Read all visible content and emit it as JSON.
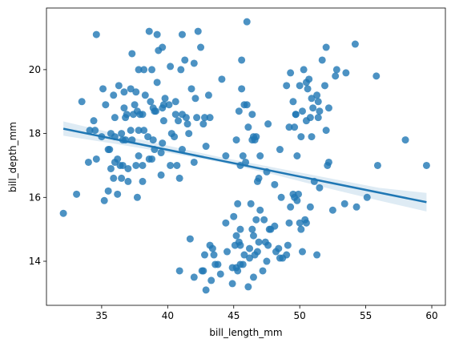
{
  "chart_data": {
    "type": "scatter",
    "xlabel": "bill_length_mm",
    "ylabel": "bill_depth_mm",
    "xlim": [
      30.82,
      61.03
    ],
    "ylim": [
      12.62,
      21.93
    ],
    "xticks": [
      35,
      40,
      45,
      50,
      55,
      60
    ],
    "yticks": [
      14,
      16,
      18,
      20
    ],
    "color": "#1f77b4",
    "x": [
      32.1,
      33.1,
      33.5,
      34.0,
      34.1,
      34.4,
      34.5,
      34.6,
      34.6,
      35.0,
      35.1,
      35.2,
      35.3,
      35.5,
      35.5,
      35.6,
      35.7,
      35.9,
      35.9,
      36.0,
      36.0,
      36.0,
      36.2,
      36.2,
      36.3,
      36.4,
      36.5,
      36.5,
      36.6,
      36.7,
      36.7,
      36.8,
      36.9,
      37.0,
      37.0,
      37.2,
      37.2,
      37.3,
      37.3,
      37.5,
      37.6,
      37.6,
      37.7,
      37.7,
      37.8,
      37.8,
      37.8,
      37.9,
      38.1,
      38.1,
      38.1,
      38.2,
      38.2,
      38.3,
      38.5,
      38.6,
      38.6,
      38.7,
      38.8,
      38.8,
      38.9,
      39.0,
      39.1,
      39.2,
      39.2,
      39.3,
      39.5,
      39.5,
      39.6,
      39.6,
      39.7,
      39.7,
      39.8,
      40.1,
      40.2,
      40.2,
      40.3,
      40.5,
      40.6,
      40.7,
      40.8,
      40.9,
      41.0,
      41.1,
      41.1,
      41.3,
      41.4,
      41.5,
      41.6,
      41.8,
      42.0,
      42.1,
      42.2,
      42.3,
      42.5,
      42.7,
      42.8,
      42.9,
      43.1,
      43.2,
      44.1,
      44.4,
      45.6,
      45.8,
      46.0,
      40.6,
      41.1,
      36.6,
      39.0,
      37.4,
      38.9,
      35.7,
      36.8,
      39.6,
      42.0,
      40.9,
      41.7,
      42.0,
      42.6,
      42.7,
      42.8,
      42.9,
      43.2,
      43.3,
      43.4,
      43.5,
      43.6,
      43.8,
      44.0,
      44.4,
      44.5,
      44.9,
      45.1,
      45.2,
      45.2,
      45.3,
      45.4,
      45.5,
      45.5,
      45.7,
      45.8,
      46.1,
      46.2,
      46.4,
      46.5,
      46.6,
      46.8,
      46.9,
      47.2,
      47.3,
      47.5,
      47.6,
      47.8,
      48.1,
      48.2,
      48.4,
      48.5,
      48.7,
      49.0,
      49.1,
      49.2,
      49.5,
      49.8,
      50.0,
      50.1,
      50.4,
      50.5,
      50.8,
      51.1,
      51.3,
      51.5,
      52.1,
      52.2,
      52.5,
      53.4,
      54.3,
      55.1,
      55.9,
      59.6,
      45.0,
      45.3,
      46.5,
      46.2,
      47.4,
      48.6,
      49.3,
      49.6,
      46.7,
      47.0,
      44.9,
      45.5,
      46.3,
      47.7,
      50.2,
      49.9,
      45.2,
      45.4,
      45.5,
      45.6,
      45.7,
      46.0,
      46.1,
      46.4,
      46.4,
      46.6,
      46.7,
      46.8,
      46.9,
      47.0,
      47.5,
      47.6,
      48.1,
      48.5,
      49.0,
      49.2,
      49.3,
      49.5,
      49.6,
      49.7,
      49.8,
      50.0,
      50.1,
      50.2,
      50.3,
      50.5,
      50.6,
      50.7,
      50.8,
      50.9,
      51.0,
      51.3,
      51.4,
      51.5,
      51.7,
      51.9,
      52.0,
      52.0,
      52.2,
      52.7,
      52.8,
      53.5,
      54.2,
      55.8,
      58.0,
      49.7,
      50.9,
      51.4,
      50.5,
      45.9,
      46.5
    ],
    "values": [
      15.5,
      16.1,
      19.0,
      17.1,
      18.1,
      18.4,
      18.1,
      21.1,
      17.2,
      17.9,
      19.4,
      15.9,
      18.9,
      16.2,
      17.5,
      17.5,
      16.9,
      16.6,
      19.2,
      17.9,
      18.5,
      17.1,
      16.1,
      17.2,
      19.5,
      17.0,
      16.6,
      18.0,
      17.8,
      18.8,
      19.3,
      18.5,
      18.6,
      16.9,
      16.5,
      18.1,
      19.4,
      17.8,
      20.5,
      18.9,
      17.0,
      19.3,
      18.7,
      16.0,
      17.3,
      18.1,
      20.0,
      18.6,
      17.0,
      18.6,
      16.5,
      18.1,
      20.0,
      19.2,
      17.9,
      21.2,
      17.2,
      19.0,
      17.2,
      20.0,
      18.8,
      17.5,
      18.7,
      19.6,
      21.1,
      20.6,
      17.4,
      16.7,
      18.8,
      20.7,
      18.4,
      18.9,
      19.1,
      18.9,
      17.0,
      20.1,
      18.0,
      17.9,
      19.0,
      17.0,
      18.4,
      16.6,
      20.0,
      18.6,
      21.1,
      20.3,
      18.5,
      18.3,
      18.0,
      19.4,
      20.2,
      19.1,
      18.5,
      21.2,
      20.7,
      18.3,
      18.5,
      17.6,
      19.2,
      18.5,
      19.7,
      17.3,
      20.3,
      18.9,
      21.5,
      18.6,
      17.5,
      17.0,
      18.7,
      18.6,
      17.8,
      18.0,
      17.8,
      17.7,
      17.1,
      13.7,
      14.7,
      13.5,
      13.7,
      13.7,
      14.2,
      13.1,
      14.5,
      13.4,
      14.4,
      14.2,
      13.9,
      13.9,
      13.6,
      15.2,
      14.3,
      13.3,
      14.5,
      13.8,
      14.8,
      13.7,
      14.6,
      13.9,
      15.0,
      13.9,
      14.2,
      13.2,
      14.4,
      15.0,
      13.5,
      14.2,
      14.3,
      14.6,
      13.7,
      15.3,
      14.0,
      14.5,
      15.0,
      15.1,
      14.3,
      14.4,
      14.1,
      14.1,
      14.2,
      14.5,
      15.2,
      16.1,
      15.9,
      15.2,
      15.0,
      15.3,
      15.2,
      15.7,
      16.5,
      14.2,
      16.3,
      17.0,
      17.1,
      15.6,
      15.8,
      15.7,
      16.0,
      17.0,
      17.0,
      15.4,
      15.8,
      14.8,
      14.1,
      14.6,
      16.0,
      15.7,
      16.0,
      15.3,
      15.6,
      13.8,
      14.5,
      15.8,
      15.0,
      14.3,
      16.1,
      17.8,
      18.7,
      17.0,
      19.4,
      17.3,
      18.9,
      18.2,
      18.6,
      17.8,
      17.8,
      17.9,
      16.5,
      16.6,
      17.3,
      16.8,
      18.3,
      16.4,
      17.5,
      19.5,
      18.2,
      19.9,
      19.0,
      18.2,
      18.6,
      17.3,
      19.5,
      17.9,
      18.7,
      20.0,
      18.4,
      19.4,
      19.7,
      18.5,
      17.9,
      18.8,
      19.2,
      19.0,
      18.7,
      20.3,
      19.5,
      18.1,
      20.7,
      18.8,
      19.8,
      20.0,
      19.9,
      20.8,
      19.8,
      17.8,
      18.6,
      19.1,
      18.5,
      19.6,
      17.1,
      17.9
    ],
    "regression": {
      "x": [
        32.1,
        59.6
      ],
      "values": [
        18.15,
        15.85
      ]
    },
    "ci": {
      "x": [
        32.1,
        36,
        40,
        44,
        48,
        52,
        56,
        59.6
      ],
      "lower": [
        17.93,
        17.68,
        17.4,
        17.1,
        16.72,
        16.3,
        15.9,
        15.56
      ],
      "upper": [
        18.38,
        18.0,
        17.62,
        17.26,
        16.94,
        16.62,
        16.3,
        16.14
      ]
    }
  }
}
